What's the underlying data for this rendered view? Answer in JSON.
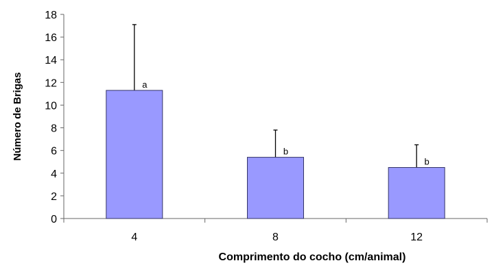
{
  "chart_data": {
    "type": "bar",
    "title": "",
    "xlabel": "Comprimento do cocho (cm/animal)",
    "ylabel": "Número de Brigas",
    "categories": [
      "4",
      "8",
      "12"
    ],
    "values": [
      11.3,
      5.4,
      4.5
    ],
    "error_upper": [
      17.1,
      7.8,
      6.5
    ],
    "annotations": [
      "a",
      "b",
      "b"
    ],
    "ylim": [
      0,
      18
    ],
    "yticks": [
      0,
      2,
      4,
      6,
      8,
      10,
      12,
      14,
      16,
      18
    ],
    "grid": false,
    "bar_color": "#9999ff",
    "bar_edge_color": "#333366"
  }
}
